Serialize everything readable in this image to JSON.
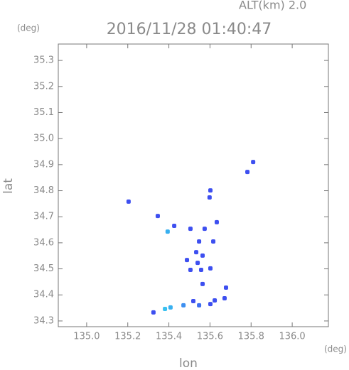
{
  "chart_data": {
    "type": "scatter",
    "altitude": "ALT(km) 2.0",
    "title": "2016/11/28 01:40:47",
    "y_unit": "(deg)",
    "x_unit": "(deg)",
    "x_label": "lon",
    "y_label": "lat",
    "xlim": [
      134.862,
      136.176
    ],
    "ylim": [
      34.278,
      35.363
    ],
    "xticks": [
      {
        "value": 135,
        "label": "135.0"
      },
      135.2,
      135.4,
      135.6,
      135.8,
      {
        "value": 136,
        "label": "136.0"
      }
    ],
    "yticks": [
      34.3,
      34.4,
      34.5,
      34.6,
      34.7,
      34.8,
      34.9,
      {
        "value": 35,
        "label": "35.0"
      },
      35.1,
      35.2,
      35.3
    ],
    "x": [
      135.204,
      135.782,
      135.81,
      135.602,
      135.598,
      135.633,
      135.505,
      135.394,
      135.426,
      135.574,
      135.547,
      135.616,
      135.533,
      135.564,
      135.54,
      135.557,
      135.505,
      135.602,
      135.564,
      135.678,
      135.671,
      135.519,
      135.602,
      135.547,
      135.471,
      135.408,
      135.381,
      135.325,
      135.623,
      135.346,
      135.488
    ],
    "y": [
      34.758,
      34.872,
      34.91,
      34.801,
      34.774,
      34.679,
      34.654,
      34.643,
      34.665,
      34.654,
      34.605,
      34.605,
      34.564,
      34.551,
      34.523,
      34.496,
      34.496,
      34.502,
      34.442,
      34.428,
      34.387,
      34.376,
      34.365,
      34.36,
      34.36,
      34.352,
      34.346,
      34.333,
      34.379,
      34.703,
      34.534
    ],
    "colors": [
      "#3d4ff0",
      "#3d4ff0",
      "#3d4ff0",
      "#3d4ff0",
      "#3d4ff0",
      "#3d4ff0",
      "#3d4ff0",
      "#38b0f0",
      "#3d4ff0",
      "#3d4ff0",
      "#3d4ff0",
      "#3d4ff0",
      "#3d4ff0",
      "#3d4ff0",
      "#3d4ff0",
      "#3d4ff0",
      "#3d4ff0",
      "#3d4ff0",
      "#3d4ff0",
      "#3d4ff0",
      "#3d4ff0",
      "#3d4ff0",
      "#3d4ff0",
      "#3d6ff0",
      "#3d8ff0",
      "#38b0f0",
      "#38c0f0",
      "#3d4ff0",
      "#3d4ff0",
      "#3d4ff0",
      "#3d4ff0"
    ]
  }
}
